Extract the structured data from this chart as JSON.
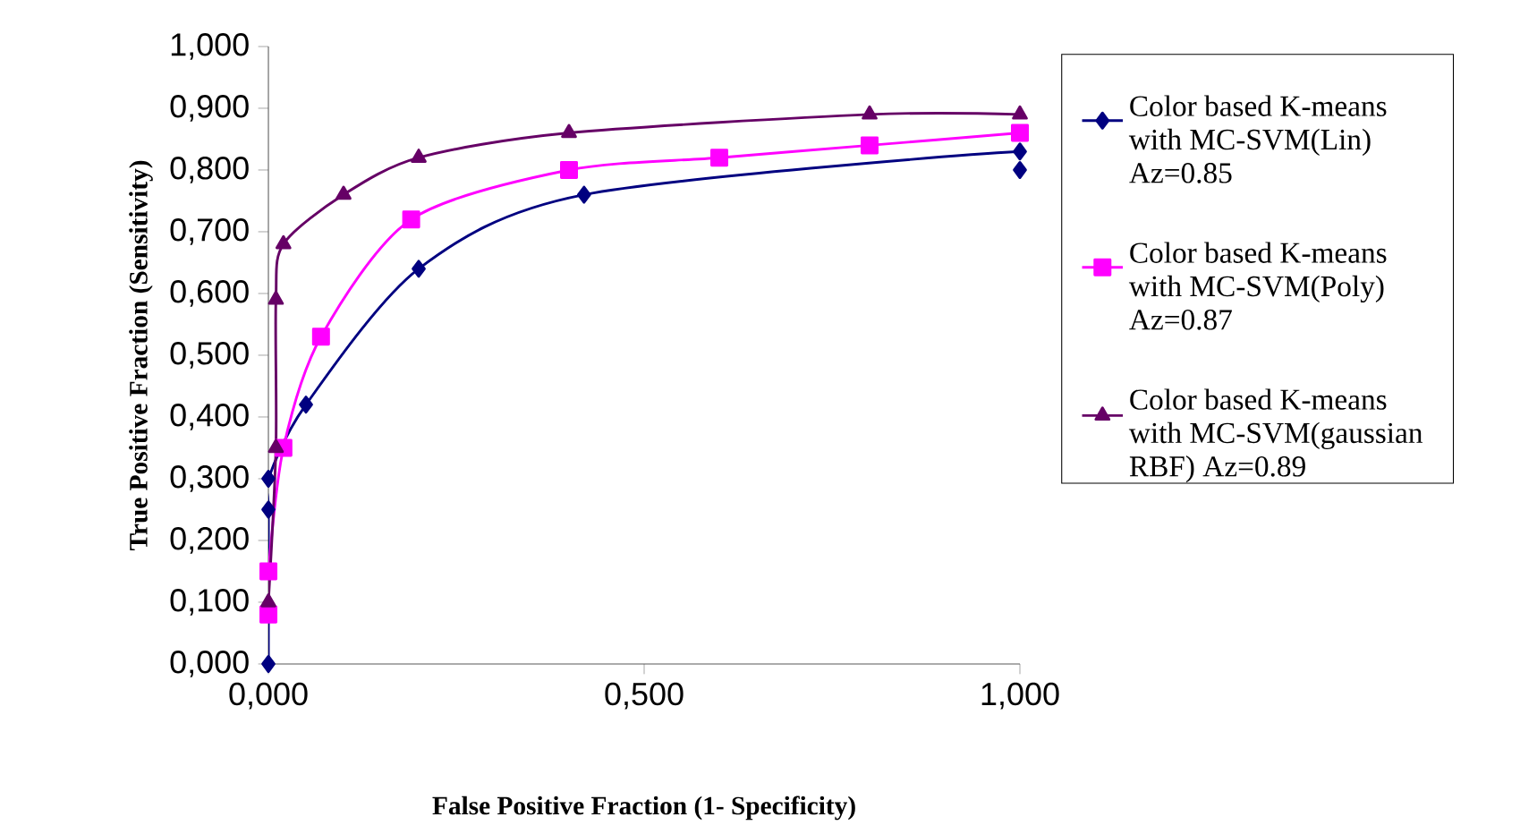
{
  "chart_data": {
    "type": "line",
    "xlabel": "False Positive Fraction (1- Specificity)",
    "ylabel": "True Positive Fraction (Sensitivity)",
    "xlim": [
      0,
      1
    ],
    "ylim": [
      0,
      1
    ],
    "xticks": [
      {
        "value": 0,
        "label": "0,000"
      },
      {
        "value": 0.5,
        "label": "0,500"
      },
      {
        "value": 1,
        "label": "1,000"
      }
    ],
    "yticks": [
      {
        "value": 0,
        "label": "0,000"
      },
      {
        "value": 0.1,
        "label": "0,100"
      },
      {
        "value": 0.2,
        "label": "0,200"
      },
      {
        "value": 0.3,
        "label": "0,300"
      },
      {
        "value": 0.4,
        "label": "0,400"
      },
      {
        "value": 0.5,
        "label": "0,500"
      },
      {
        "value": 0.6,
        "label": "0,600"
      },
      {
        "value": 0.7,
        "label": "0,700"
      },
      {
        "value": 0.8,
        "label": "0,800"
      },
      {
        "value": 0.9,
        "label": "0,900"
      },
      {
        "value": 1,
        "label": "1,000"
      }
    ],
    "legend": "right",
    "grid": false,
    "series": [
      {
        "name": "Color based K-means with MC-SVM(Lin) Az=0.85",
        "color": "#000080",
        "marker": "diamond",
        "x": [
          0,
          0,
          0,
          0.05,
          0.2,
          0.42,
          1,
          1
        ],
        "values": [
          0,
          0.25,
          0.3,
          0.42,
          0.64,
          0.76,
          0.83,
          0.8
        ]
      },
      {
        "name": "Color based K-means with MC-SVM(Poly) Az=0.87",
        "color": "#ff00ff",
        "marker": "square",
        "x": [
          0,
          0,
          0.02,
          0.07,
          0.19,
          0.4,
          0.6,
          0.8,
          1
        ],
        "values": [
          0.08,
          0.15,
          0.35,
          0.53,
          0.72,
          0.8,
          0.82,
          0.84,
          0.86
        ]
      },
      {
        "name": "Color based K-means with MC-SVM(gaussian RBF) Az=0.89",
        "color": "#660066",
        "marker": "triangle",
        "x": [
          0,
          0.01,
          0.01,
          0.02,
          0.1,
          0.2,
          0.4,
          0.8,
          1
        ],
        "values": [
          0.1,
          0.35,
          0.59,
          0.68,
          0.76,
          0.82,
          0.86,
          0.89,
          0.89
        ]
      }
    ]
  }
}
